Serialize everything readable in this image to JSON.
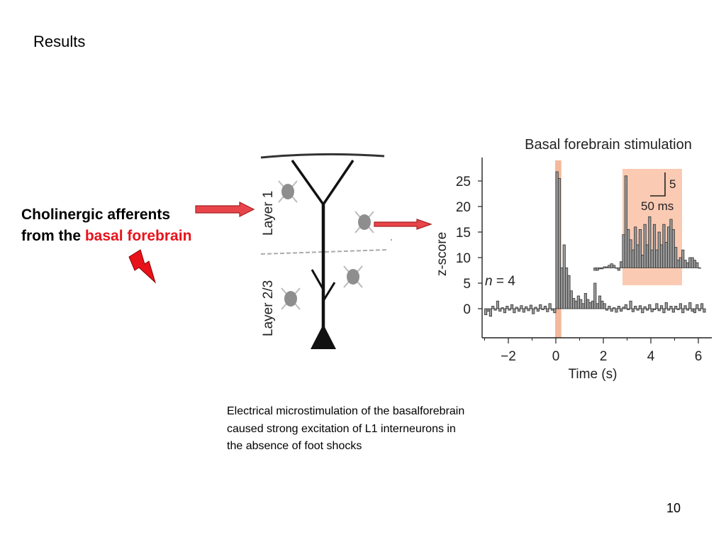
{
  "slide": {
    "title": "Results",
    "page_number": "10"
  },
  "callout": {
    "line1": "Cholinergic afferents",
    "line2_prefix": "from the ",
    "line2_highlight": "basal forebrain",
    "highlight_color": "#e8121b"
  },
  "caption": {
    "lines": [
      "Electrical microstimulation of the basalforebrain",
      "caused strong excitation of L1 interneurons in",
      "the absence of foot shocks"
    ]
  },
  "neuron_diagram": {
    "layer_labels": [
      "Layer 1",
      "Layer 2/3"
    ]
  },
  "chart_data": {
    "type": "bar",
    "title": "Basal forebrain stimulation",
    "xlabel": "Time (s)",
    "ylabel": "z-score",
    "xlim": [
      -3,
      6.5
    ],
    "ylim": [
      -2,
      28
    ],
    "xticks": [
      -2,
      0,
      2,
      4,
      6
    ],
    "xtick_labels": [
      "−2",
      "0",
      "2",
      "4",
      "6"
    ],
    "yticks": [
      0,
      5,
      10,
      15,
      20,
      25
    ],
    "yticks_labels": [
      "0",
      "5",
      "10",
      "15",
      "20",
      "25"
    ],
    "annotation": "n = 4",
    "stim_window_s": [
      0,
      0.2
    ],
    "stim_color": "#f4b89c",
    "inset": {
      "label_y": "5",
      "label_x": "50 ms",
      "highlight_color": "#fbcab3"
    },
    "main_histogram": {
      "bin_width_s": 0.1,
      "x_start_s": -3.0,
      "values": [
        -1.2,
        -0.5,
        -1.5,
        0.5,
        -0.3,
        1.5,
        -0.5,
        0.2,
        -0.8,
        0.5,
        -0.3,
        0.8,
        -0.8,
        0.3,
        -0.5,
        0.6,
        -0.7,
        0.4,
        -0.4,
        0.7,
        -1.0,
        0.3,
        -0.5,
        0.8,
        -0.2,
        0.5,
        -0.6,
        1.0,
        -0.3,
        -0.8,
        26.8,
        25.5,
        8.0,
        12.5,
        8.0,
        6.5,
        3.5,
        2.0,
        1.5,
        2.5,
        1.8,
        1.0,
        3.0,
        1.8,
        1.2,
        1.5,
        5.0,
        1.0,
        2.5,
        1.5,
        1.0,
        -0.3,
        0.5,
        -0.5,
        0.2,
        -0.7,
        0.5,
        -0.5,
        0.3,
        0.8,
        -0.2,
        1.5,
        -0.6,
        0.5,
        -0.3,
        0.6,
        -0.8,
        0.4,
        -0.3,
        0.8,
        -0.6,
        -0.2,
        1.0,
        -0.4,
        0.6,
        -0.8,
        1.2,
        -0.3,
        0.5,
        -0.7,
        0.5,
        -0.2,
        1.0,
        -0.8,
        0.6,
        -0.3,
        1.2,
        -0.5,
        -0.8,
        0.8,
        -0.4,
        1.0,
        -0.7
      ]
    },
    "inset_histogram": {
      "bin_width_s": 0.1,
      "x_start_s": 1.6,
      "baseline": 8.0,
      "values": [
        7.5,
        7.5,
        7.8,
        7.8,
        8.2,
        8.2,
        8.5,
        8.8,
        8.5,
        8.0,
        7.5,
        9.2,
        14.5,
        26.0,
        15.5,
        13.5,
        11.5,
        16.0,
        12.5,
        15.5,
        10.5,
        16.5,
        12.5,
        18.0,
        11.5,
        16.5,
        11.5,
        15.0,
        12.5,
        16.5,
        13.0,
        16.0,
        17.5,
        15.5,
        12.0,
        9.5,
        10.0,
        11.5,
        9.5,
        9.0,
        10.0,
        10.0,
        9.5,
        9.0,
        8.0
      ]
    }
  }
}
